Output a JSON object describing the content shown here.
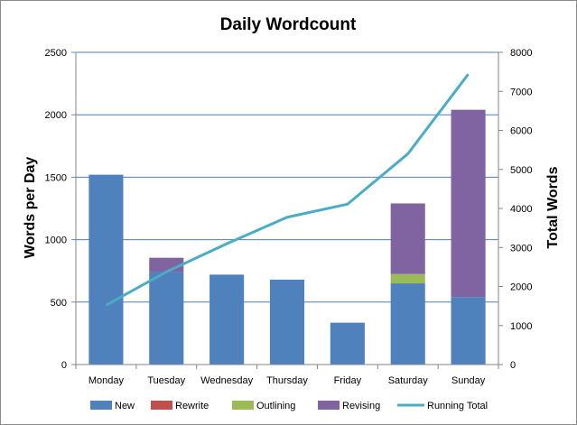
{
  "chart_data": {
    "type": "bar",
    "subtype": "stacked bar with line on secondary axis",
    "title": "Daily Wordcount",
    "ylabel": "Words per Day",
    "y2label": "Total Words",
    "categories": [
      "Monday",
      "Tuesday",
      "Wednesday",
      "Thursday",
      "Friday",
      "Saturday",
      "Sunday"
    ],
    "ylim": [
      0,
      2500
    ],
    "yticks": [
      "0",
      "500",
      "1000",
      "1500",
      "2000",
      "2500"
    ],
    "y2lim": [
      0,
      8000
    ],
    "y2ticks": [
      "0",
      "1000",
      "2000",
      "3000",
      "4000",
      "5000",
      "6000",
      "7000",
      "8000"
    ],
    "grid": "horizontal major gridlines",
    "legend_position": "bottom",
    "series": [
      {
        "name": "New",
        "color": "#4f81bd",
        "axis": "primary",
        "values": [
          1520,
          740,
          720,
          680,
          335,
          650,
          540
        ]
      },
      {
        "name": "Rewrite",
        "color": "#c0504d",
        "axis": "primary",
        "values": [
          0,
          0,
          0,
          0,
          0,
          0,
          0
        ]
      },
      {
        "name": "Outlining",
        "color": "#9bbb59",
        "axis": "primary",
        "values": [
          0,
          0,
          0,
          0,
          0,
          75,
          0
        ]
      },
      {
        "name": "Revising",
        "color": "#8064a2",
        "axis": "primary",
        "values": [
          0,
          115,
          0,
          0,
          0,
          565,
          1500
        ]
      },
      {
        "name": "Running Total",
        "color": "#4bacc6",
        "axis": "secondary",
        "type": "line",
        "values": [
          1520,
          2375,
          3095,
          3775,
          4110,
          5400,
          7440
        ]
      }
    ]
  }
}
